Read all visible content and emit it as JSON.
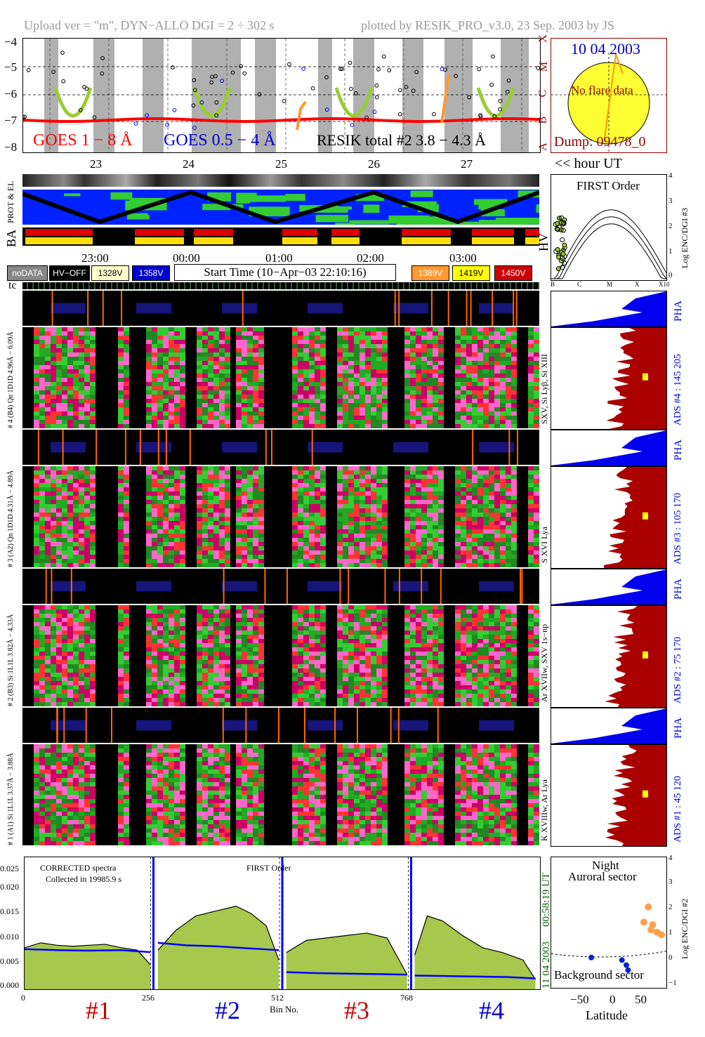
{
  "header": {
    "upload_text": "Upload ver = \"m\", DYN−ALLO DGI = 2 ÷ 302 s",
    "plotted_text": "plotted by RESIK_PRO_v3.0, 23 Sep. 2003 by JS"
  },
  "goes_panel": {
    "y_ticks": [
      "−4",
      "−5",
      "−6",
      "−7",
      "−8"
    ],
    "class_letters": [
      "X",
      "M",
      "C",
      "B",
      "A"
    ],
    "legend_goes_long": "GOES 1 − 8 Å",
    "legend_goes_short": "GOES 0.5 − 4 Å",
    "legend_resik": "RESIK total #2  3.8 − 4.3 Å",
    "colors": {
      "goes_long": "#ff0000",
      "goes_short": "#0000ff",
      "resik": "#000000",
      "green_dots": "#9acd32",
      "orange_dots": "#ff9933"
    }
  },
  "sun_panel": {
    "date": "10 04 2003",
    "flare_text": "No flare data",
    "dump_text": "Dump: 09478_0"
  },
  "orbit_axis": {
    "labels": [
      "23",
      "24",
      "25",
      "26",
      "27"
    ],
    "hour_note": "<< hour UT"
  },
  "left_labels": {
    "prot_el": "PROT & EL",
    "ba": "BA",
    "hv": "HV",
    "tc": "tc"
  },
  "time_axis": {
    "labels": [
      "23:00",
      "00:00",
      "01:00",
      "02:00",
      "03:00"
    ]
  },
  "status_legend": {
    "nodata": "noDATA",
    "hvoff": "HV−OFF",
    "v1": "1328V",
    "v2": "1358V",
    "start_time": "Start Time (10−Apr−03 22:10:16)",
    "v3": "1389V",
    "v4": "1419V",
    "v5": "1450V"
  },
  "hv_plot": {
    "title": "FIRST Order",
    "x_ticks": [
      "B",
      "C",
      "M",
      "X",
      "X10"
    ],
    "y_ticks": [
      "4",
      "3",
      "2",
      "1",
      "0"
    ],
    "ylabel": "Log ENC/DGI #3"
  },
  "channels": [
    {
      "pha_left": "# 4 (B4)  6.09Å",
      "left": "# 4 (B4) Qn 1D1D 4.96Å − 6.09Å",
      "lines": "SXV, Si Lyβ, Si XIII",
      "right": "ADS #4 :   145 205",
      "pha": "PHA"
    },
    {
      "pha_left": "4.89Å",
      "left": "# 3 (A2) Qn 1D1D 4.31Å − 4.89Å",
      "lines": "S XVI Lya",
      "right": "ADS #3 :   105 170",
      "pha": "PHA"
    },
    {
      "pha_left": "4.33Å",
      "left": "# 2 (B3) Si 1L1L 3.82Å − 4.33Å",
      "lines": "Ar XVIIw, SXV 1s−np",
      "right": "ADS #2 :    75 170",
      "pha": "PHA"
    },
    {
      "pha_left": "3.88Å",
      "left": "# 1 (A1) Si 1L1L 3.37Å − 3.88Å",
      "lines": "K XVIIIw, Ar Lya",
      "right": "ADS #1 :    45 120",
      "pha": "PHA"
    }
  ],
  "spectrum_panel": {
    "note1": "CORRECTED spectra",
    "note2": "Collected in 19985.9 s",
    "order": "FIRST Order",
    "y_ticks": [
      "0.025",
      "0.020",
      "0.015",
      "0.010",
      "0.005",
      "0.000"
    ],
    "x_ticks": [
      "0",
      "256",
      "512",
      "768"
    ],
    "xlabel": "Bin No.",
    "date_right": "11 04 2003",
    "time_right": "00:58:19 UT",
    "section_labels": [
      "#1",
      "#2",
      "#3",
      "#4"
    ],
    "section_colors": [
      "#cc0000",
      "#0000cc",
      "#cc0000",
      "#0000cc"
    ]
  },
  "latitude_panel": {
    "title1": "Night",
    "title2": "Auroral sector",
    "bottom_label": "Background sector",
    "xlabel": "Latitude",
    "x_ticks": [
      "−50",
      "0",
      "50"
    ],
    "y_ticks": [
      "4",
      "3",
      "2",
      "1",
      "0",
      "−1"
    ],
    "ylabel": "Log ENC/DGI #2"
  },
  "chart_data": {
    "type": "line",
    "title": "",
    "xlabel": "Bin No.",
    "ylabel": "",
    "xlim": [
      0,
      1024
    ],
    "ylim": [
      0,
      0.027
    ],
    "series": [
      {
        "name": "",
        "color": "#000000",
        "segments": [
          {
            "x": [
              0,
              32,
              64,
              96,
              128,
              160,
              192,
              224,
              250
            ],
            "y": [
              0.0085,
              0.0095,
              0.009,
              0.0088,
              0.009,
              0.0092,
              0.0085,
              0.008,
              0.005
            ]
          },
          {
            "x": [
              265,
              300,
              340,
              380,
              420,
              450,
              480,
              505
            ],
            "y": [
              0.008,
              0.012,
              0.015,
              0.016,
              0.017,
              0.0155,
              0.013,
              0.006
            ]
          },
          {
            "x": [
              520,
              560,
              600,
              640,
              680,
              720,
              760
            ],
            "y": [
              0.0075,
              0.01,
              0.0105,
              0.011,
              0.0115,
              0.0105,
              0.003
            ]
          },
          {
            "x": [
              775,
              800,
              830,
              870,
              910,
              950,
              990,
              1015
            ],
            "y": [
              0.007,
              0.015,
              0.014,
              0.011,
              0.0085,
              0.0075,
              0.006,
              0.002
            ]
          }
        ]
      },
      {
        "name": "",
        "color": "#0000ff",
        "segments": [
          {
            "x": [
              0,
              64,
              128,
              192,
              250
            ],
            "y": [
              0.0082,
              0.008,
              0.0079,
              0.008,
              0.0076
            ]
          },
          {
            "x": [
              265,
              320,
              380,
              440,
              505
            ],
            "y": [
              0.0095,
              0.009,
              0.0088,
              0.0084,
              0.008
            ]
          },
          {
            "x": [
              520,
              580,
              640,
              700,
              760
            ],
            "y": [
              0.0035,
              0.0033,
              0.0032,
              0.0031,
              0.003
            ]
          },
          {
            "x": [
              775,
              840,
              900,
              960,
              1015
            ],
            "y": [
              0.0028,
              0.0027,
              0.0026,
              0.0025,
              0.0022
            ]
          }
        ]
      }
    ]
  }
}
